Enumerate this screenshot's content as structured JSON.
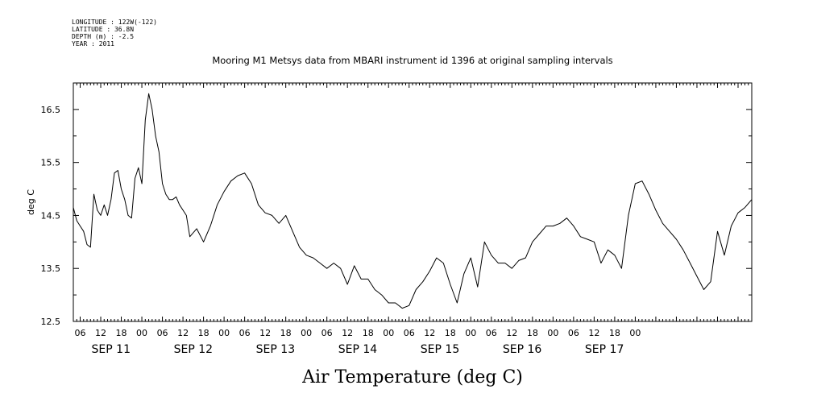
{
  "meta": {
    "longitude": "LONGITUDE : 122W(-122)",
    "latitude": "LATITUDE : 36.8N",
    "depth": "DEPTH (m) : -2.5",
    "year": "YEAR : 2011"
  },
  "chart_data": {
    "type": "line",
    "title": "Mooring M1 Metsys data from MBARI instrument id 1396 at original sampling intervals",
    "xlabel": "Air Temperature (deg C)",
    "ylabel": "deg C",
    "ylim": [
      12.5,
      17.0
    ],
    "yticks": [
      "12.5",
      "13.5",
      "14.5",
      "15.5",
      "16.5"
    ],
    "xlim_hours": [
      -20,
      178
    ],
    "hour_ticks": [
      "06",
      "12",
      "18",
      "00",
      "06",
      "12",
      "18",
      "00",
      "06",
      "12",
      "18",
      "00",
      "06",
      "12",
      "18",
      "00",
      "06",
      "12",
      "18",
      "00",
      "06",
      "12",
      "18",
      "00",
      "06",
      "12",
      "18",
      "00"
    ],
    "day_labels": [
      "SEP 11",
      "SEP 12",
      "SEP 13",
      "SEP 14",
      "SEP 15",
      "SEP 16",
      "SEP 17"
    ],
    "grid": false,
    "series": [
      {
        "x_hours": [
          -20,
          -19,
          -18,
          -17,
          -16,
          -15,
          -14,
          -13,
          -12,
          -11,
          -10,
          -9,
          -8,
          -7,
          -6,
          -5,
          -4,
          -3,
          -2,
          -1,
          0,
          1,
          2,
          3,
          4,
          5,
          6,
          7,
          8,
          9,
          10,
          11,
          12,
          13,
          14,
          16,
          18,
          20,
          22,
          24,
          26,
          28,
          30,
          32,
          34,
          36,
          38,
          40,
          42,
          44,
          46,
          48,
          50,
          52,
          54,
          56,
          58,
          60,
          62,
          64,
          66,
          68,
          70,
          72,
          74,
          76,
          78,
          80,
          82,
          84,
          86,
          88,
          90,
          92,
          94,
          96,
          98,
          100,
          102,
          104,
          106,
          108,
          110,
          112,
          114,
          116,
          118,
          120,
          122,
          124,
          126,
          128,
          130,
          132,
          134,
          136,
          138,
          140,
          142,
          144,
          146,
          148,
          150,
          152,
          154,
          156,
          158,
          160,
          162,
          164,
          166,
          168,
          170,
          172,
          174,
          176,
          178
        ],
        "values": [
          14.65,
          14.4,
          14.3,
          14.2,
          13.95,
          13.9,
          14.9,
          14.6,
          14.5,
          14.7,
          14.5,
          14.8,
          15.3,
          15.35,
          15.0,
          14.8,
          14.5,
          14.45,
          15.2,
          15.4,
          15.1,
          16.3,
          16.8,
          16.5,
          16.0,
          15.7,
          15.1,
          14.9,
          14.8,
          14.8,
          14.85,
          14.7,
          14.6,
          14.5,
          14.1,
          14.25,
          14.0,
          14.3,
          14.7,
          14.95,
          15.15,
          15.25,
          15.3,
          15.1,
          14.7,
          14.55,
          14.5,
          14.35,
          14.5,
          14.2,
          13.9,
          13.75,
          13.7,
          13.6,
          13.5,
          13.6,
          13.5,
          13.2,
          13.55,
          13.3,
          13.3,
          13.1,
          13.0,
          12.85,
          12.85,
          12.75,
          12.8,
          13.1,
          13.25,
          13.45,
          13.7,
          13.6,
          13.2,
          12.85,
          13.4,
          13.7,
          13.15,
          14.0,
          13.75,
          13.6,
          13.6,
          13.5,
          13.65,
          13.7,
          14.0,
          14.15,
          14.3,
          14.3,
          14.35,
          14.45,
          14.3,
          14.1,
          14.05,
          14.0,
          13.6,
          13.85,
          13.75,
          13.5,
          14.5,
          15.1,
          15.15,
          14.9,
          14.6,
          14.35,
          14.2,
          14.05,
          13.85,
          13.6,
          13.35,
          13.1,
          13.25,
          14.2,
          13.75,
          14.3,
          14.55,
          14.65,
          14.8
        ]
      }
    ]
  }
}
